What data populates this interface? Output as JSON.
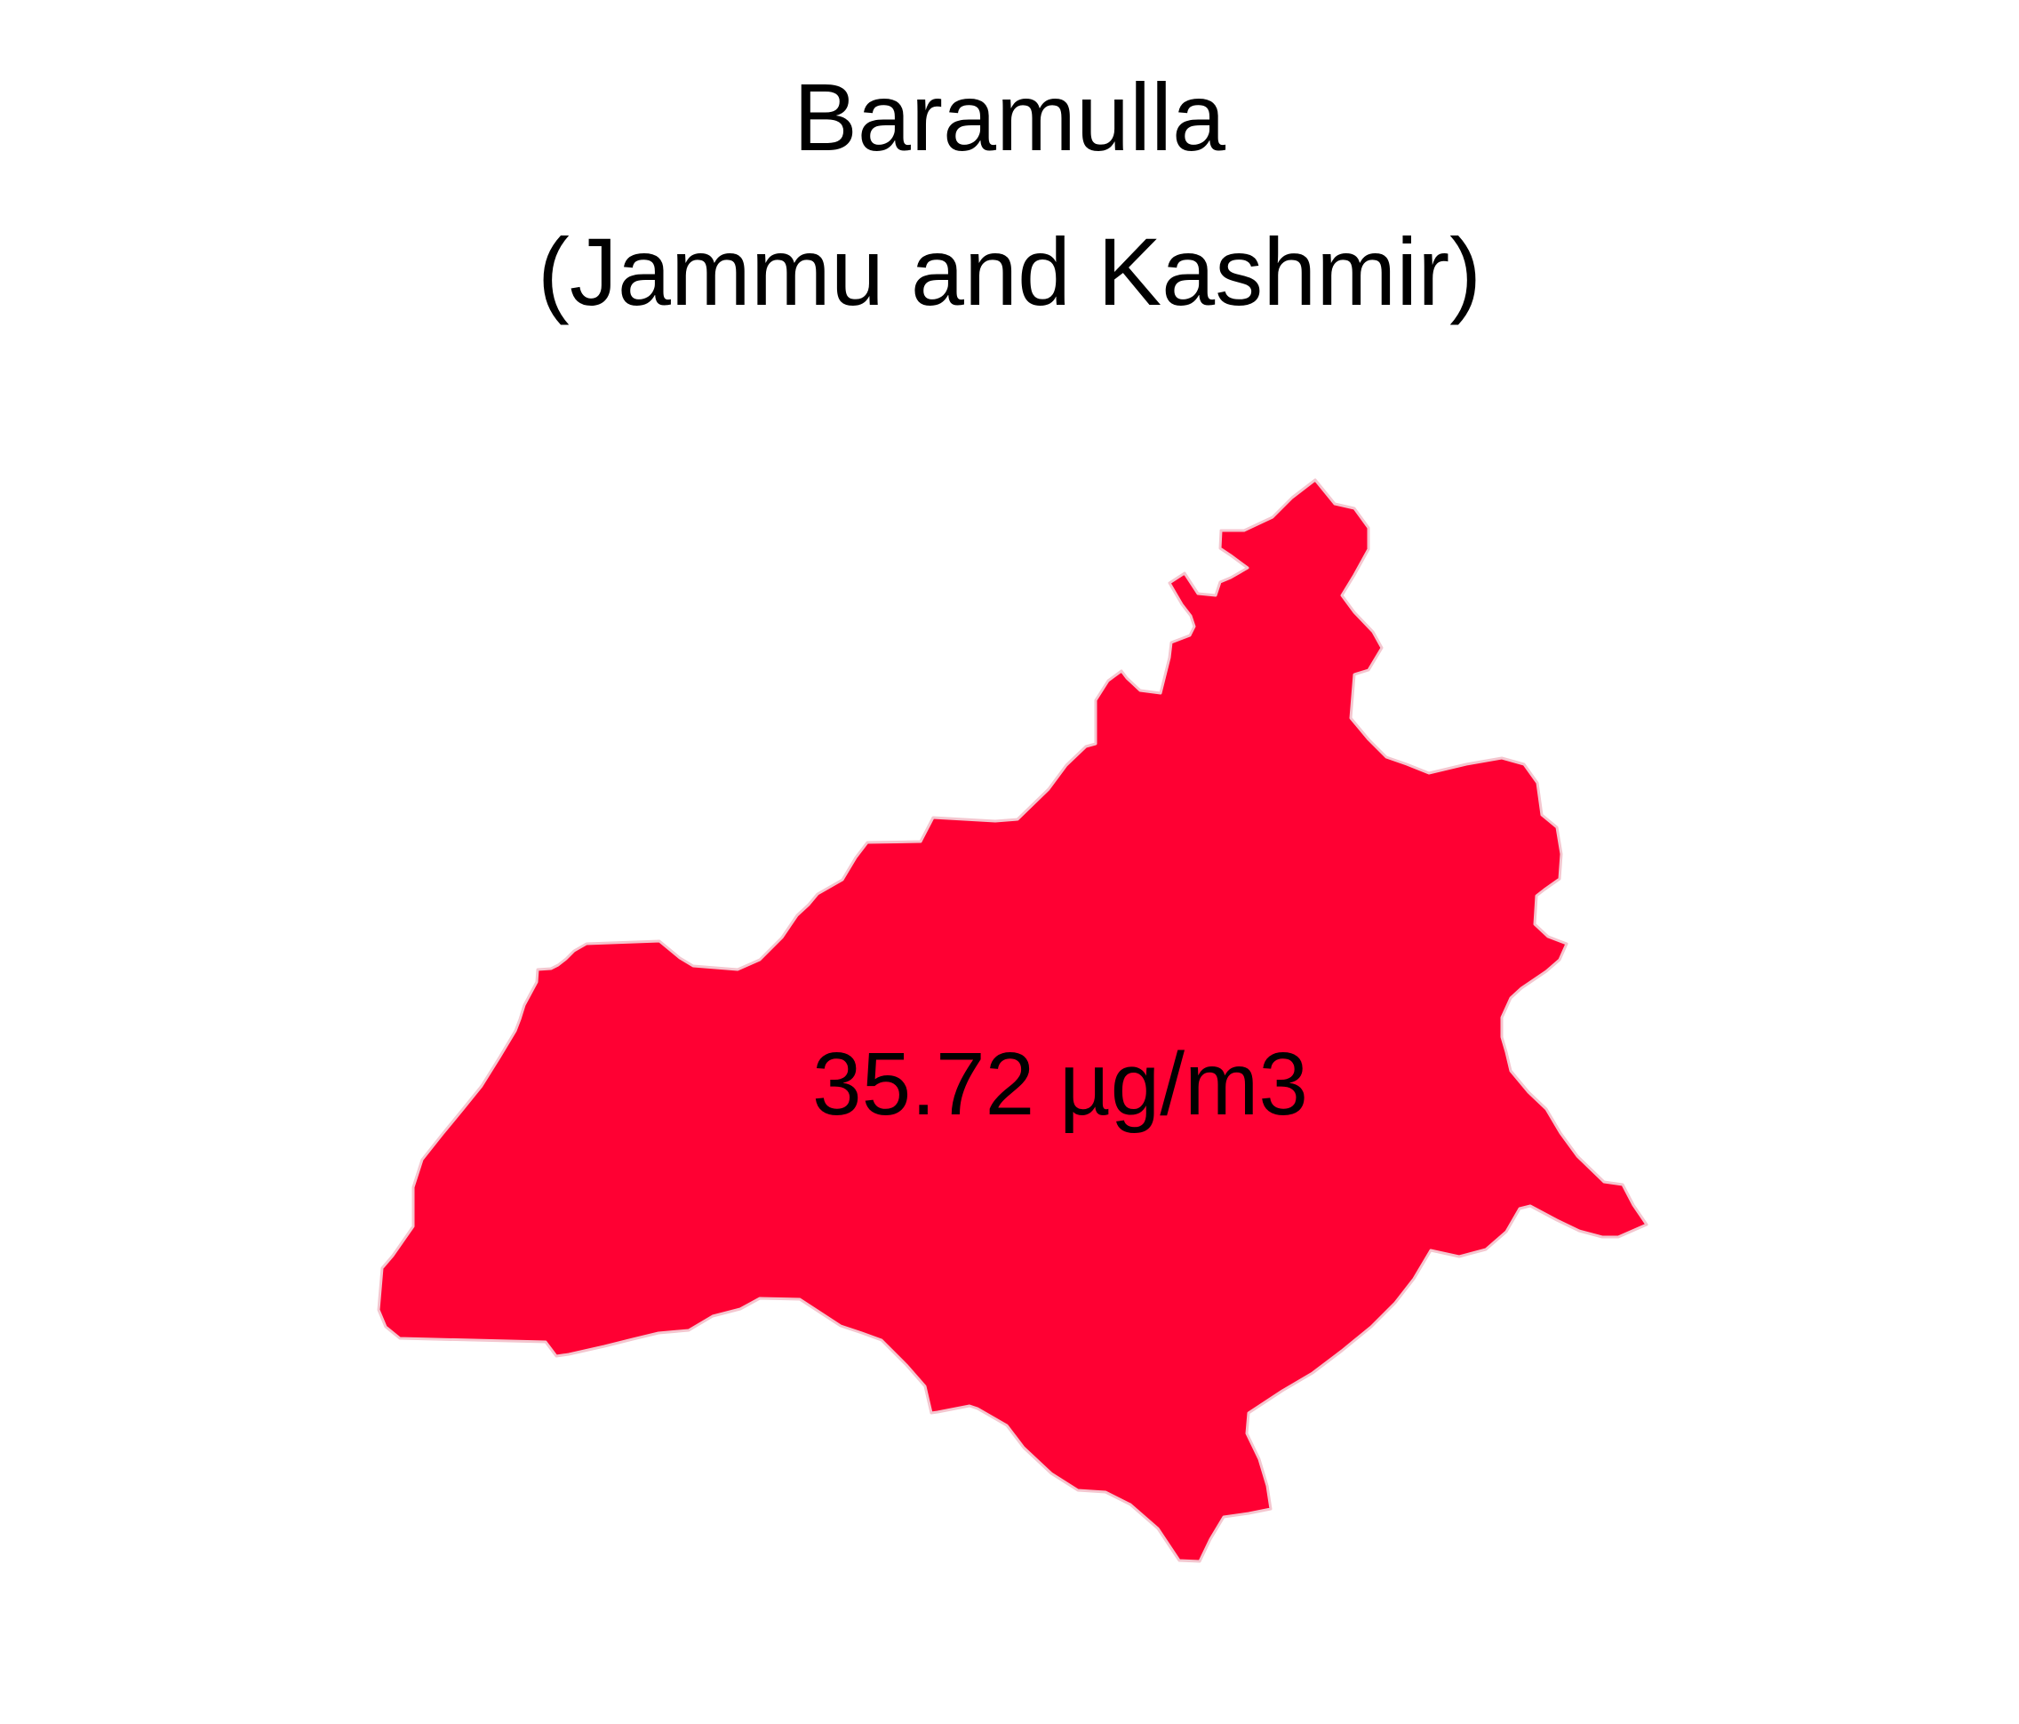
{
  "map": {
    "title_line_1": "Baramulla",
    "title_line_2": "(Jammu and Kashmir)",
    "region_value_label": "35.72 µg/m3",
    "region_fill_color": "#FF0033",
    "region_stroke_color": "#F4C6CF"
  }
}
